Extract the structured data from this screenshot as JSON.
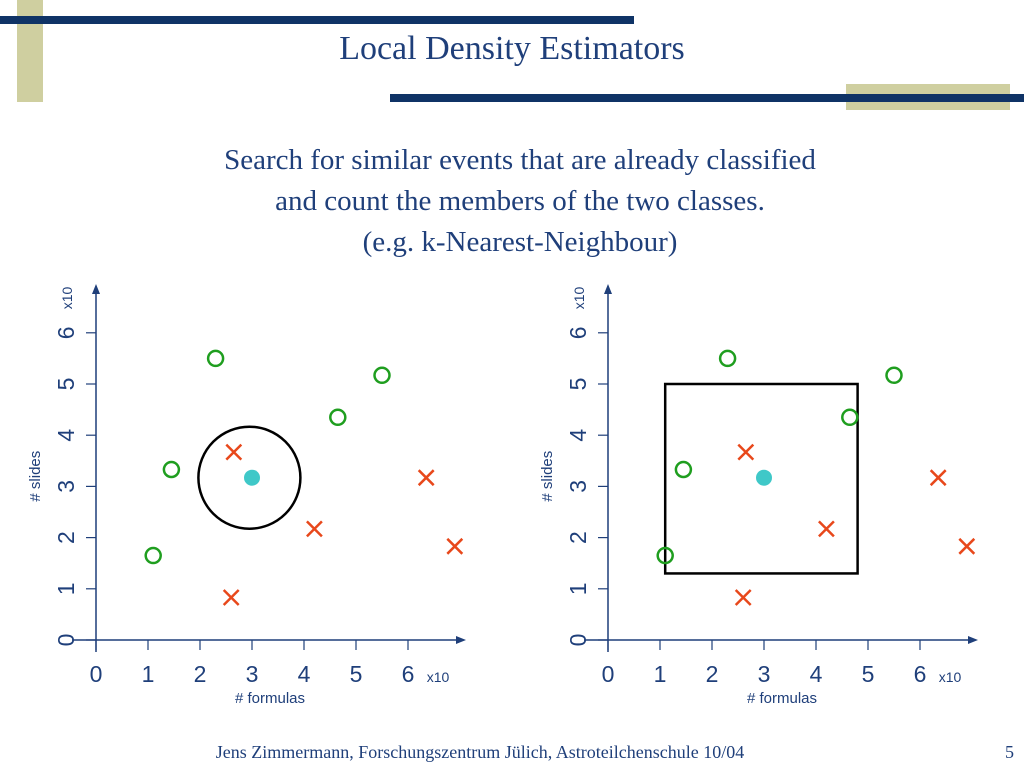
{
  "slide": {
    "title": "Local Density Estimators",
    "subtitle_lines": [
      "Search for similar events that are already classified",
      "and count the members of the two classes.",
      "(e.g. k-Nearest-Neighbour)"
    ],
    "footer": "Jens Zimmermann, Forschungszentrum Jülich, Astroteilchenschule 10/04",
    "page_number": "5"
  },
  "colors": {
    "title": "#1f3f7a",
    "decor_bar": "#0f3366",
    "decor_block": "#cfcfa0",
    "axis": "#1f3f7a",
    "class_circle": "#1f9e1f",
    "class_cross": "#e8481b",
    "query_point": "#3fc8c8",
    "region": "#000000"
  },
  "chart_data": [
    {
      "type": "scatter",
      "xlabel": "#  formulas",
      "ylabel": "# slides",
      "x_multiplier": "x10",
      "y_multiplier": "x10",
      "xlim": [
        0,
        7.1
      ],
      "ylim": [
        0,
        7.0
      ],
      "x_ticks": [
        "0",
        "1",
        "2",
        "3",
        "4",
        "5",
        "6"
      ],
      "y_ticks": [
        "0",
        "1",
        "2",
        "3",
        "4",
        "5",
        "6"
      ],
      "series": [
        {
          "marker": "circle",
          "points": [
            [
              1.1,
              1.65
            ],
            [
              1.45,
              3.33
            ],
            [
              2.3,
              5.5
            ],
            [
              4.65,
              4.35
            ],
            [
              5.5,
              5.17
            ]
          ]
        },
        {
          "marker": "cross",
          "points": [
            [
              2.65,
              3.67
            ],
            [
              2.6,
              0.83
            ],
            [
              4.2,
              2.17
            ],
            [
              6.35,
              3.17
            ],
            [
              6.9,
              1.83
            ]
          ]
        },
        {
          "marker": "filled",
          "points": [
            [
              3.0,
              3.17
            ]
          ]
        }
      ],
      "region": {
        "shape": "circle",
        "center": [
          2.95,
          3.17
        ],
        "radius": 1.0
      }
    },
    {
      "type": "scatter",
      "xlabel": "#  formulas",
      "ylabel": "# slides",
      "x_multiplier": "x10",
      "y_multiplier": "x10",
      "xlim": [
        0,
        7.1
      ],
      "ylim": [
        0,
        7.0
      ],
      "x_ticks": [
        "0",
        "1",
        "2",
        "3",
        "4",
        "5",
        "6"
      ],
      "y_ticks": [
        "0",
        "1",
        "2",
        "3",
        "4",
        "5",
        "6"
      ],
      "series": [
        {
          "marker": "circle",
          "points": [
            [
              1.1,
              1.65
            ],
            [
              1.45,
              3.33
            ],
            [
              2.3,
              5.5
            ],
            [
              4.65,
              4.35
            ],
            [
              5.5,
              5.17
            ]
          ]
        },
        {
          "marker": "cross",
          "points": [
            [
              2.65,
              3.67
            ],
            [
              2.6,
              0.83
            ],
            [
              4.2,
              2.17
            ],
            [
              6.35,
              3.17
            ],
            [
              6.9,
              1.83
            ]
          ]
        },
        {
          "marker": "filled",
          "points": [
            [
              3.0,
              3.17
            ]
          ]
        }
      ],
      "region": {
        "shape": "rectangle",
        "x_range": [
          1.1,
          4.8
        ],
        "y_range": [
          1.3,
          5.0
        ]
      }
    }
  ]
}
